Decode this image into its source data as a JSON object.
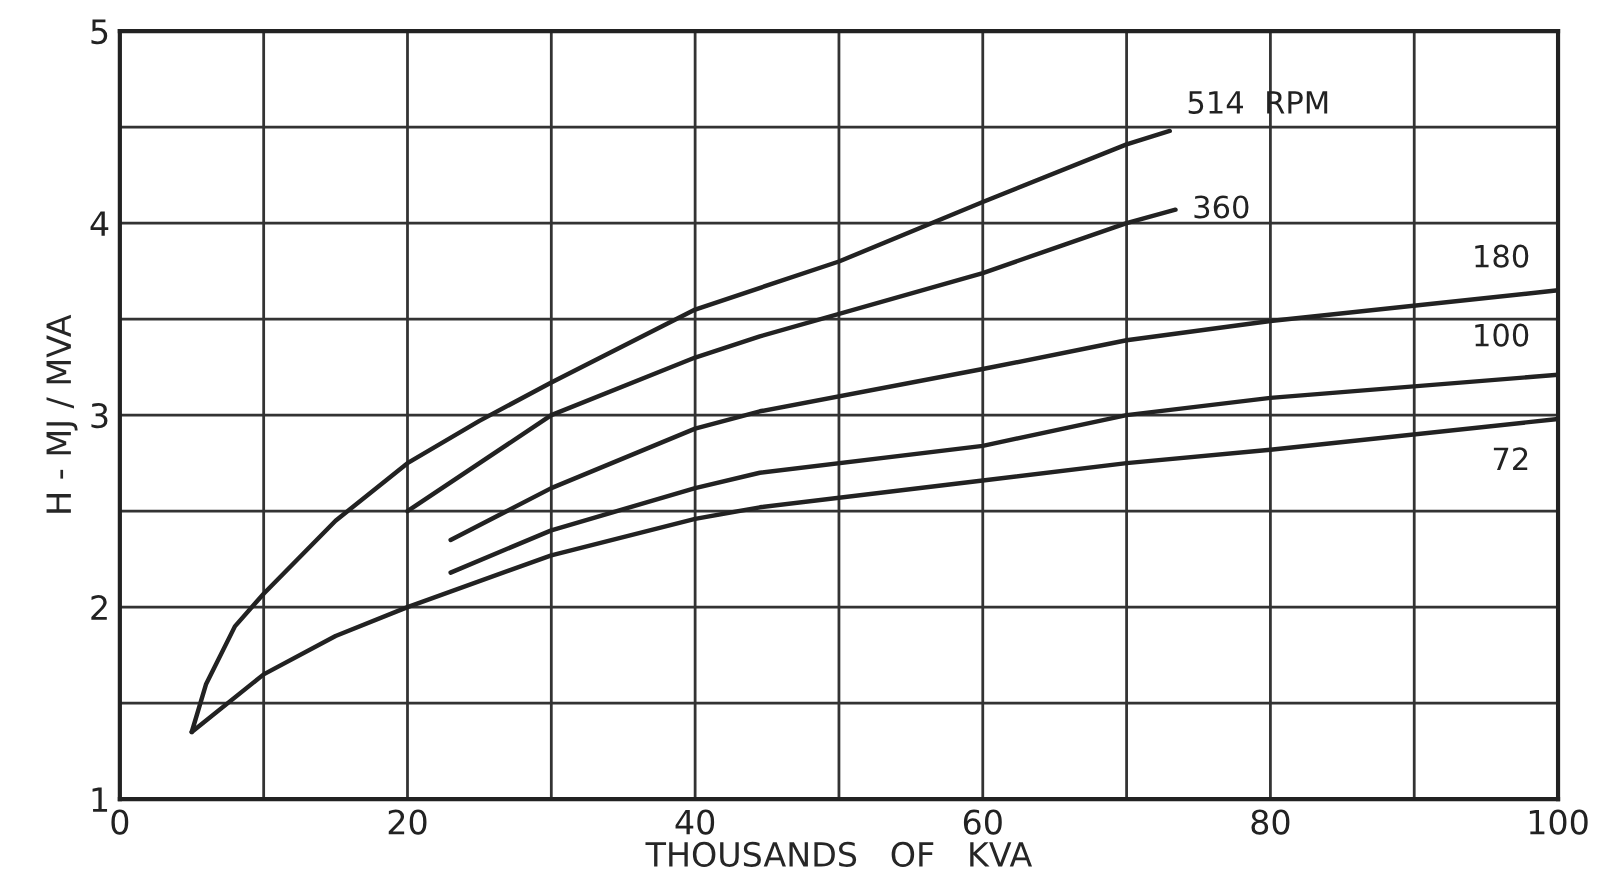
{
  "chart_data": {
    "type": "line",
    "xlabel": "THOUSANDS   OF   KVA",
    "ylabel": "H - MJ / MVA",
    "xlim": [
      0,
      100
    ],
    "ylim": [
      1,
      5
    ],
    "xticks": [
      0,
      {
        "value": 10,
        "label": null
      },
      20,
      {
        "value": 30,
        "label": null
      },
      40,
      {
        "value": 50,
        "label": null
      },
      60,
      {
        "value": 70,
        "label": null
      },
      80,
      {
        "value": 90,
        "label": null
      },
      100
    ],
    "yticks": [
      1,
      {
        "value": 1.5,
        "label": null
      },
      2,
      {
        "value": 2.5,
        "label": null
      },
      3,
      {
        "value": 3.5,
        "label": null
      },
      4,
      {
        "value": 4.5,
        "label": null
      },
      5
    ],
    "grid": true,
    "legend": false,
    "marker": "none",
    "line_style": "solid",
    "series": [
      {
        "name": "514  RPM",
        "color": "#222222",
        "x": [
          5,
          6,
          8,
          10,
          15,
          20,
          25,
          30,
          40,
          50,
          60,
          70,
          73
        ],
        "values": [
          1.35,
          1.6,
          1.9,
          2.07,
          2.45,
          2.75,
          2.97,
          3.17,
          3.55,
          3.8,
          4.11,
          4.41,
          4.48
        ]
      },
      {
        "name": "360",
        "color": "#222222",
        "x": [
          20,
          30,
          40,
          44.5,
          60,
          70,
          73.4
        ],
        "values": [
          2.5,
          3.0,
          3.3,
          3.41,
          3.74,
          4.0,
          4.07
        ]
      },
      {
        "name": "180",
        "color": "#222222",
        "x": [
          23,
          30,
          40,
          44.5,
          60,
          70,
          80,
          100
        ],
        "values": [
          2.35,
          2.62,
          2.93,
          3.02,
          3.24,
          3.39,
          3.49,
          3.65
        ]
      },
      {
        "name": "100",
        "color": "#222222",
        "x": [
          23,
          30,
          40,
          44.5,
          60,
          70,
          80,
          100
        ],
        "values": [
          2.18,
          2.4,
          2.62,
          2.7,
          2.84,
          3.0,
          3.09,
          3.21
        ]
      },
      {
        "name": "72",
        "color": "#222222",
        "x": [
          5,
          10,
          15,
          20,
          30,
          40,
          44.5,
          60,
          70,
          80,
          100
        ],
        "values": [
          1.35,
          1.65,
          1.85,
          2.0,
          2.27,
          2.46,
          2.52,
          2.66,
          2.75,
          2.82,
          2.98
        ]
      }
    ]
  }
}
